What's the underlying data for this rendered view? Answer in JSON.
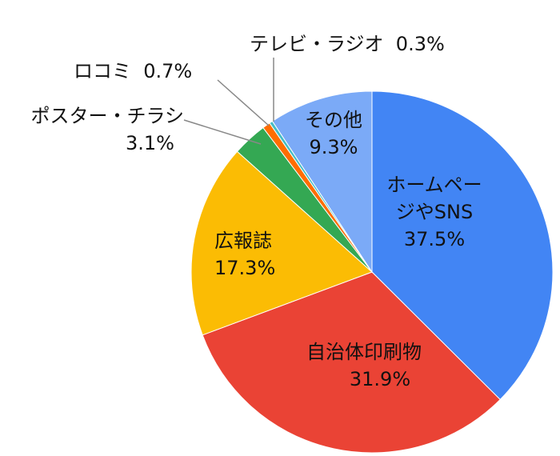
{
  "chart_data": {
    "type": "pie",
    "categories": [
      "ホームページやSNS",
      "自治体印刷物",
      "広報誌",
      "ポスター・チラシ",
      "ロコミ",
      "テレビ・ラジオ",
      "その他"
    ],
    "values": [
      37.5,
      31.9,
      17.3,
      3.1,
      0.7,
      0.3,
      9.3
    ],
    "value_labels": [
      "37.5%",
      "31.9%",
      "17.3%",
      "3.1%",
      "0.7%",
      "0.3%",
      "9.3%"
    ],
    "colors": [
      "#4285f4",
      "#ea4335",
      "#fbbc04",
      "#34a853",
      "#ff6d01",
      "#46bdc6",
      "#7baaf7"
    ]
  }
}
